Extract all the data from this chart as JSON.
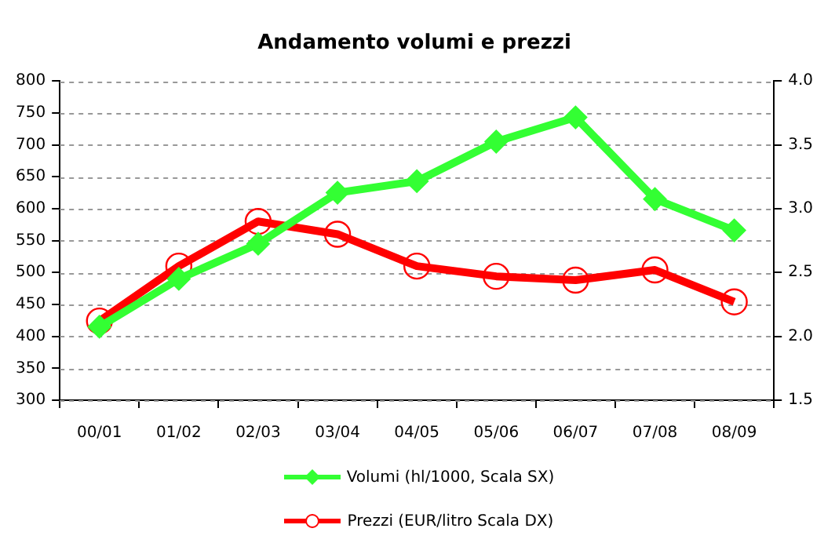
{
  "chart_data": {
    "type": "line",
    "title": "Andamento volumi e prezzi",
    "categories": [
      "00/01",
      "01/02",
      "02/03",
      "03/04",
      "04/05",
      "05/06",
      "06/07",
      "07/08",
      "08/09"
    ],
    "series": [
      {
        "name": "Volumi (hl/1000, Scala SX)",
        "color": "#33ff33",
        "marker": "diamond",
        "values": [
          415,
          490,
          545,
          625,
          643,
          705,
          743,
          615,
          566
        ]
      },
      {
        "name": "Prezzi (EUR/litro Scala DX)",
        "color": "#ff0000",
        "marker": "circle",
        "axis": "y2",
        "values": [
          2.12,
          2.55,
          2.9,
          2.8,
          2.55,
          2.47,
          2.44,
          2.52,
          2.27
        ]
      }
    ],
    "ylim": [
      300,
      800
    ],
    "yticks": [
      300,
      350,
      400,
      450,
      500,
      550,
      600,
      650,
      700,
      750,
      800
    ],
    "y2lim": [
      1.5,
      4.0
    ],
    "y2ticks": [
      {
        "value": 1.5,
        "label": "1.5"
      },
      {
        "value": 2,
        "label": "2.0"
      },
      {
        "value": 2.5,
        "label": "2.5"
      },
      {
        "value": 3,
        "label": "3.0"
      },
      {
        "value": 3.5,
        "label": "3.5"
      },
      {
        "value": 4,
        "label": "4.0"
      }
    ],
    "grid": "y",
    "legend": "bottom",
    "line_style": "solid"
  }
}
